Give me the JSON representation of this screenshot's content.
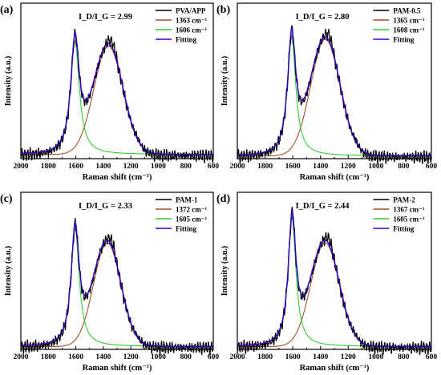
{
  "chart_data": [
    {
      "panel_label": "(a)",
      "type": "line",
      "ratio_label": "I_D/I_G = 2.99",
      "legend": [
        "PVA/APP",
        "1363 cm⁻¹",
        "1606 cm⁻¹",
        "Fitting"
      ],
      "xlabel": "Raman shift (cm⁻¹)",
      "ylabel": "Intensity (a.u.)",
      "xlim": [
        2000,
        600
      ],
      "x_ticks": [
        2000,
        1800,
        1600,
        1400,
        1200,
        1000,
        800,
        600
      ],
      "ylim": [
        0,
        1.12
      ],
      "d_band": {
        "center": 1363,
        "amp": 0.78,
        "width": 150
      },
      "g_band": {
        "center": 1606,
        "amp": 0.82,
        "width": 38
      },
      "baseline": 0.03,
      "series_colors": [
        "#000000",
        "#a0522d",
        "#33cc33",
        "#3300cc"
      ]
    },
    {
      "panel_label": "(b)",
      "type": "line",
      "ratio_label": "I_D/I_G = 2.80",
      "legend": [
        "PAM-0.5",
        "1365 cm⁻¹",
        "1608 cm⁻¹",
        "Fitting"
      ],
      "xlabel": "Raman shift (cm⁻¹)",
      "ylabel": "Intensity (a.u.)",
      "xlim": [
        2000,
        600
      ],
      "x_ticks": [
        2000,
        1800,
        1600,
        1400,
        1200,
        1000,
        800,
        600
      ],
      "ylim": [
        0,
        1.12
      ],
      "d_band": {
        "center": 1365,
        "amp": 0.84,
        "width": 150
      },
      "g_band": {
        "center": 1608,
        "amp": 0.86,
        "width": 36
      },
      "baseline": 0.02,
      "series_colors": [
        "#000000",
        "#a0522d",
        "#33cc33",
        "#3300cc"
      ]
    },
    {
      "panel_label": "(c)",
      "type": "line",
      "ratio_label": "I_D/I_G = 2.33",
      "legend": [
        "PAM-1",
        "1372 cm⁻¹",
        "1605 cm⁻¹",
        "Fitting"
      ],
      "xlabel": "Raman shift (cm⁻¹)",
      "ylabel": "Intensity (a.u.)",
      "xlim": [
        2000,
        600
      ],
      "x_ticks": [
        2000,
        1800,
        1600,
        1400,
        1200,
        1000,
        800,
        600
      ],
      "ylim": [
        0,
        1.12
      ],
      "d_band": {
        "center": 1372,
        "amp": 0.74,
        "width": 140
      },
      "g_band": {
        "center": 1605,
        "amp": 0.84,
        "width": 36
      },
      "baseline": 0.02,
      "series_colors": [
        "#000000",
        "#a0522d",
        "#33cc33",
        "#3300cc"
      ]
    },
    {
      "panel_label": "(d)",
      "type": "line",
      "ratio_label": "I_D/I_G = 2.44",
      "legend": [
        "PAM-2",
        "1367 cm⁻¹",
        "1605 cm⁻¹",
        "Fitting"
      ],
      "xlabel": "Raman shift (cm⁻¹)",
      "ylabel": "Intensity (a.u.)",
      "xlim": [
        2000,
        600
      ],
      "x_ticks": [
        2000,
        1800,
        1600,
        1400,
        1200,
        1000,
        800,
        600
      ],
      "ylim": [
        0,
        1.12
      ],
      "d_band": {
        "center": 1367,
        "amp": 0.74,
        "width": 145
      },
      "g_band": {
        "center": 1605,
        "amp": 0.92,
        "width": 34
      },
      "baseline": 0.02,
      "series_colors": [
        "#000000",
        "#a0522d",
        "#33cc33",
        "#3300cc"
      ]
    }
  ]
}
